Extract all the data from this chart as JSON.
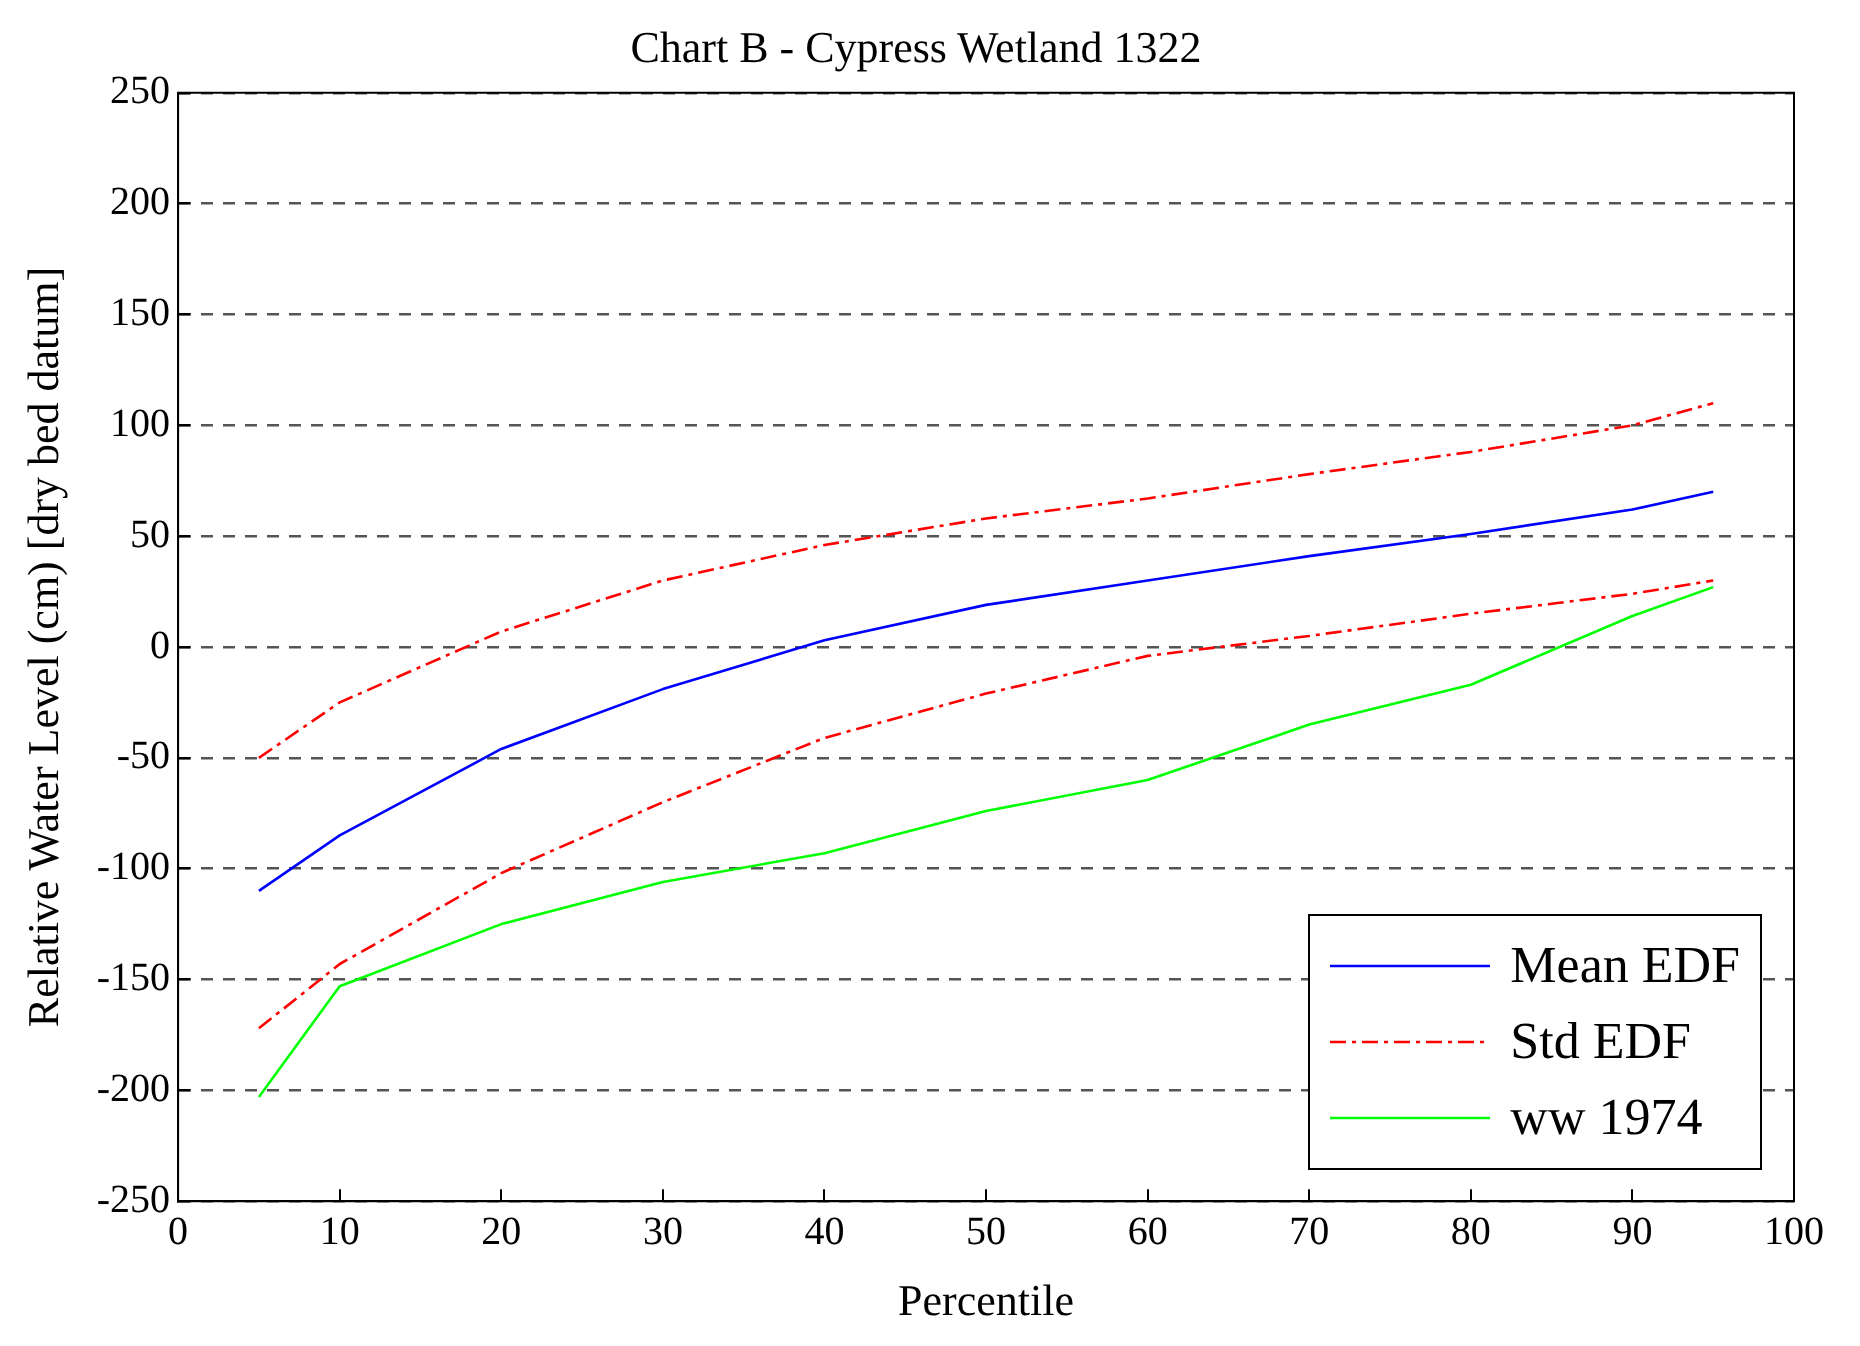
{
  "chart_data": {
    "type": "line",
    "title": "Chart B - Cypress Wetland 1322",
    "xlabel": "Percentile",
    "ylabel": "Relative Water Level (cm) [dry bed datum]",
    "x": [
      5,
      10,
      20,
      30,
      40,
      50,
      60,
      70,
      80,
      90,
      95
    ],
    "xlim": [
      0,
      100
    ],
    "xticks": [
      0,
      10,
      20,
      30,
      40,
      50,
      60,
      70,
      80,
      90,
      100
    ],
    "ylim": [
      -250,
      250
    ],
    "yticks": [
      -250,
      -200,
      -150,
      -100,
      -50,
      0,
      50,
      100,
      150,
      200,
      250
    ],
    "grid": "y",
    "legend": "bottom right",
    "marker": "none",
    "series": [
      {
        "name": "Mean EDF",
        "color": "#0000ff",
        "line_style": "solid",
        "values": [
          -110,
          -85,
          -46,
          -19,
          3,
          19,
          30,
          41,
          51,
          62,
          70
        ]
      },
      {
        "name": "Std EDF",
        "color": "#ff0000",
        "line_style": "dashed",
        "values": [
          -50,
          -25,
          7,
          30,
          46,
          58,
          67,
          78,
          88,
          100,
          110
        ]
      },
      {
        "color": "#ff0000",
        "line_style": "dashed",
        "values": [
          -172,
          -143,
          -102,
          -70,
          -41,
          -21,
          -4,
          5,
          15,
          24,
          30
        ]
      },
      {
        "name": "ww 1974",
        "color": "#00ff00",
        "line_style": "solid",
        "values": [
          -203,
          -153,
          -125,
          -106,
          -93,
          -74,
          -60,
          -35,
          -17,
          14,
          27
        ]
      }
    ]
  }
}
